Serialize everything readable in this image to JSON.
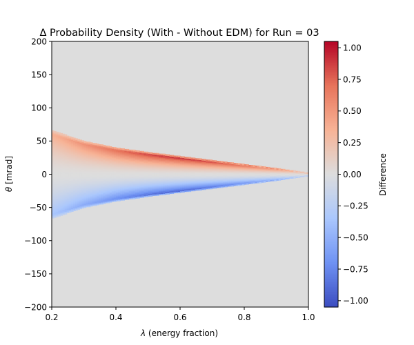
{
  "chart_data": {
    "type": "heatmap",
    "title": "Δ Probability Density (With - Without EDM) for Run = 03",
    "xlabel_symbol": "λ",
    "xlabel_rest": " (energy fraction)",
    "ylabel_symbol": "θ",
    "ylabel_rest": " [mrad]",
    "xlim": [
      0.2,
      1.0
    ],
    "ylim": [
      -200,
      200
    ],
    "x_ticks": [
      0.2,
      0.4,
      0.6,
      0.8,
      1.0
    ],
    "y_ticks": [
      -200,
      -150,
      -100,
      -50,
      0,
      50,
      100,
      150,
      200
    ],
    "colorbar": {
      "label": "Difference",
      "range": [
        -1.05,
        1.05
      ],
      "ticks": [
        -1.0,
        -0.75,
        -0.5,
        -0.25,
        0.0,
        0.25,
        0.5,
        0.75,
        1.0
      ],
      "colormap": "coolwarm",
      "colormap_stops": [
        "#3b4cc0",
        "#6f92f3",
        "#aac7fd",
        "#dddddd",
        "#f7b396",
        "#e7745b",
        "#b40426"
      ]
    },
    "background_value": 0.0,
    "background_color": "#dddddd",
    "band": {
      "description_of_shape": "symmetric lobes: positive (red) above 0 mrad, negative (blue) below; envelope narrows toward lambda = 1",
      "envelope": {
        "lambda": [
          0.2,
          0.3,
          0.4,
          0.5,
          0.6,
          0.7,
          0.8,
          0.9,
          1.0
        ],
        "theta_max": [
          66,
          50,
          40,
          33,
          27,
          21,
          15,
          9,
          2
        ]
      },
      "peak_value": 1.03,
      "peak_lambda": 0.6,
      "min_value": -1.03
    }
  }
}
